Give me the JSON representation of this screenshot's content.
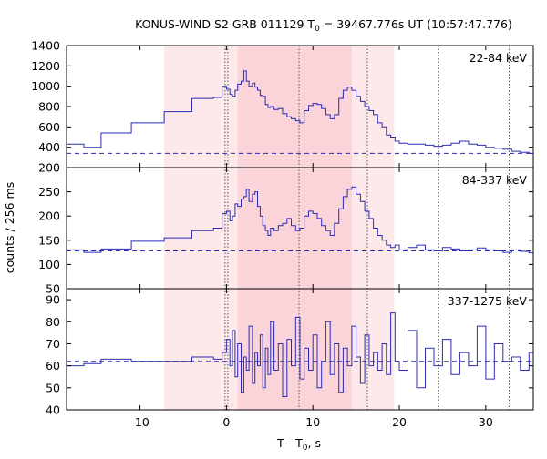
{
  "chart_data": {
    "type": "line",
    "title": "KONUS-WIND S2 GRB 011129 T",
    "title_sub": "0",
    "title_rest": " = 39467.776s UT (10:57:47.776)",
    "xlabel": "T - T",
    "xlabel_sub": "0",
    "xlabel_rest": ", s",
    "ylabel": "counts / 256 ms",
    "xlim": [
      -18.5,
      35.5
    ],
    "x_ticks": [
      -10,
      0,
      10,
      20,
      30
    ],
    "colors": {
      "line": "#2b2bb5",
      "shade_light": "#fde8ea",
      "shade_dark": "#fbd4d9",
      "axes": "#000000",
      "vline": "#555555"
    },
    "shaded_intervals": [
      {
        "from": -7.2,
        "to": 19.4,
        "tone": "light"
      },
      {
        "from": 1.3,
        "to": 14.5,
        "tone": "dark"
      }
    ],
    "vertical_lines": [
      0,
      8.4,
      16.3,
      24.5,
      32.7
    ],
    "panels": [
      {
        "band": "22-84 keV",
        "ylim": [
          200,
          1400
        ],
        "y_ticks": [
          200,
          400,
          600,
          800,
          1000,
          1200,
          1400
        ],
        "background": 340,
        "x": [
          -18.5,
          -16.5,
          -14.5,
          -11.0,
          -7.2,
          -4.0,
          -1.5,
          -0.5,
          0.0,
          0.4,
          0.7,
          1.0,
          1.3,
          1.7,
          2.0,
          2.3,
          2.6,
          3.0,
          3.3,
          3.6,
          3.9,
          4.2,
          4.5,
          4.8,
          5.1,
          5.5,
          6.0,
          6.5,
          7.0,
          7.5,
          8.0,
          8.5,
          9.0,
          9.5,
          10.0,
          10.5,
          11.0,
          11.5,
          12.0,
          12.5,
          13.0,
          13.5,
          14.0,
          14.5,
          15.0,
          15.5,
          16.0,
          16.5,
          17.0,
          17.5,
          18.0,
          18.5,
          19.0,
          19.5,
          20.0,
          21.0,
          22.0,
          23.0,
          24.0,
          25.0,
          26.0,
          27.0,
          28.0,
          29.0,
          30.0,
          31.0,
          32.0,
          33.0,
          34.0,
          35.0,
          35.5
        ],
        "y": [
          430,
          400,
          540,
          640,
          750,
          880,
          890,
          1000,
          970,
          920,
          900,
          960,
          1020,
          1050,
          1150,
          1050,
          1000,
          1030,
          990,
          960,
          910,
          900,
          820,
          790,
          800,
          770,
          780,
          730,
          700,
          680,
          660,
          640,
          760,
          810,
          830,
          820,
          780,
          720,
          680,
          720,
          880,
          960,
          990,
          960,
          900,
          850,
          800,
          760,
          720,
          640,
          600,
          520,
          500,
          460,
          440,
          430,
          430,
          420,
          410,
          420,
          440,
          460,
          430,
          420,
          400,
          390,
          380,
          360,
          350,
          340,
          340
        ]
      },
      {
        "band": "84-337 keV",
        "ylim": [
          50,
          300
        ],
        "y_ticks": [
          50,
          100,
          150,
          200,
          250
        ],
        "background": 128,
        "x": [
          -18.5,
          -16.5,
          -14.5,
          -11.0,
          -7.2,
          -4.0,
          -1.5,
          -0.5,
          0.0,
          0.4,
          0.7,
          1.0,
          1.3,
          1.7,
          2.0,
          2.3,
          2.6,
          3.0,
          3.3,
          3.6,
          3.9,
          4.2,
          4.5,
          4.8,
          5.1,
          5.5,
          6.0,
          6.5,
          7.0,
          7.5,
          8.0,
          8.5,
          9.0,
          9.5,
          10.0,
          10.5,
          11.0,
          11.5,
          12.0,
          12.5,
          13.0,
          13.5,
          14.0,
          14.5,
          15.0,
          15.5,
          16.0,
          16.5,
          17.0,
          17.5,
          18.0,
          18.5,
          19.0,
          19.5,
          20.0,
          21.0,
          22.0,
          23.0,
          24.0,
          25.0,
          26.0,
          27.0,
          28.0,
          29.0,
          30.0,
          31.0,
          32.0,
          33.0,
          34.0,
          35.0,
          35.5
        ],
        "y": [
          130,
          125,
          132,
          148,
          155,
          170,
          175,
          205,
          210,
          190,
          200,
          225,
          220,
          235,
          240,
          255,
          230,
          245,
          250,
          220,
          200,
          180,
          170,
          160,
          175,
          170,
          180,
          185,
          195,
          180,
          170,
          175,
          200,
          210,
          205,
          195,
          180,
          170,
          160,
          185,
          215,
          240,
          255,
          260,
          245,
          230,
          210,
          195,
          175,
          160,
          150,
          140,
          135,
          140,
          130,
          135,
          140,
          130,
          128,
          135,
          132,
          128,
          130,
          134,
          130,
          128,
          125,
          130,
          127,
          124,
          124
        ]
      },
      {
        "band": "337-1275 keV",
        "ylim": [
          40,
          95
        ],
        "y_ticks": [
          40,
          50,
          60,
          70,
          80,
          90
        ],
        "background": 62,
        "x": [
          -18.5,
          -16.5,
          -14.5,
          -11.0,
          -7.2,
          -4.0,
          -1.5,
          -0.5,
          0.0,
          0.4,
          0.7,
          1.0,
          1.3,
          1.7,
          2.0,
          2.3,
          2.6,
          3.0,
          3.3,
          3.6,
          3.9,
          4.2,
          4.5,
          4.8,
          5.1,
          5.5,
          6.0,
          6.5,
          7.0,
          7.5,
          8.0,
          8.5,
          9.0,
          9.5,
          10.0,
          10.5,
          11.0,
          11.5,
          12.0,
          12.5,
          13.0,
          13.5,
          14.0,
          14.5,
          15.0,
          15.5,
          16.0,
          16.5,
          17.0,
          17.5,
          18.0,
          18.5,
          19.0,
          19.5,
          20.0,
          21.0,
          22.0,
          23.0,
          24.0,
          25.0,
          26.0,
          27.0,
          28.0,
          29.0,
          30.0,
          31.0,
          32.0,
          33.0,
          34.0,
          35.0,
          35.5
        ],
        "y": [
          60,
          61,
          63,
          62,
          62,
          64,
          63,
          66,
          72,
          60,
          76,
          55,
          70,
          48,
          64,
          58,
          78,
          52,
          66,
          60,
          74,
          50,
          68,
          56,
          80,
          58,
          70,
          46,
          72,
          60,
          82,
          54,
          68,
          58,
          74,
          50,
          62,
          80,
          56,
          70,
          48,
          68,
          60,
          78,
          64,
          52,
          74,
          60,
          66,
          58,
          70,
          56,
          84,
          62,
          58,
          76,
          50,
          68,
          60,
          72,
          56,
          66,
          60,
          78,
          54,
          70,
          62,
          64,
          58,
          66,
          60
        ]
      }
    ]
  }
}
